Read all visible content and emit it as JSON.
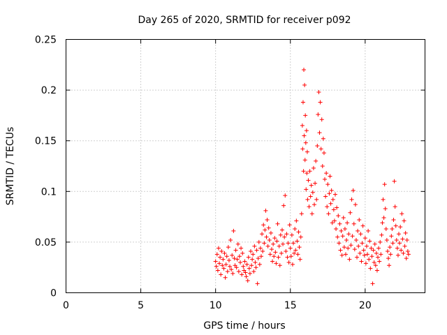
{
  "chart_data": {
    "type": "scatter",
    "title": "Day 265 of 2020, SRMTID for receiver p092",
    "xlabel": "GPS time / hours",
    "ylabel": "SRMTID / TECUs",
    "xlim": [
      0,
      24
    ],
    "ylim": [
      0,
      0.25
    ],
    "xticks": [
      0,
      5,
      10,
      15,
      20
    ],
    "yticks": [
      0,
      0.05,
      0.1,
      0.15,
      0.2,
      0.25
    ],
    "xtick_labels": [
      "0",
      "5",
      "10",
      "15",
      "20"
    ],
    "ytick_labels": [
      "0",
      "0.05",
      "0.1",
      "0.15",
      "0.2",
      "0.25"
    ],
    "grid": true,
    "marker": "+",
    "series": [
      {
        "name": "SRMTID",
        "color": "#ff0000",
        "points": [
          [
            10.0,
            0.031
          ],
          [
            10.05,
            0.026
          ],
          [
            10.1,
            0.038
          ],
          [
            10.15,
            0.022
          ],
          [
            10.2,
            0.044
          ],
          [
            10.25,
            0.029
          ],
          [
            10.3,
            0.035
          ],
          [
            10.35,
            0.018
          ],
          [
            10.4,
            0.041
          ],
          [
            10.45,
            0.027
          ],
          [
            10.5,
            0.033
          ],
          [
            10.55,
            0.024
          ],
          [
            10.6,
            0.039
          ],
          [
            10.65,
            0.015
          ],
          [
            10.7,
            0.028
          ],
          [
            10.75,
            0.036
          ],
          [
            10.8,
            0.021
          ],
          [
            10.85,
            0.045
          ],
          [
            10.9,
            0.032
          ],
          [
            10.95,
            0.026
          ],
          [
            11.0,
            0.052
          ],
          [
            11.05,
            0.023
          ],
          [
            11.1,
            0.037
          ],
          [
            11.15,
            0.019
          ],
          [
            11.2,
            0.061
          ],
          [
            11.25,
            0.034
          ],
          [
            11.3,
            0.027
          ],
          [
            11.35,
            0.042
          ],
          [
            11.4,
            0.025
          ],
          [
            11.45,
            0.033
          ],
          [
            11.5,
            0.048
          ],
          [
            11.55,
            0.021
          ],
          [
            11.6,
            0.036
          ],
          [
            11.65,
            0.03
          ],
          [
            11.7,
            0.044
          ],
          [
            11.75,
            0.018
          ],
          [
            11.8,
            0.039
          ],
          [
            11.85,
            0.026
          ],
          [
            11.9,
            0.022
          ],
          [
            11.95,
            0.031
          ],
          [
            12.0,
            0.02
          ],
          [
            12.05,
            0.016
          ],
          [
            12.1,
            0.028
          ],
          [
            12.15,
            0.012
          ],
          [
            12.2,
            0.035
          ],
          [
            12.25,
            0.024
          ],
          [
            12.3,
            0.019
          ],
          [
            12.35,
            0.041
          ],
          [
            12.4,
            0.027
          ],
          [
            12.45,
            0.033
          ],
          [
            12.5,
            0.038
          ],
          [
            12.55,
            0.021
          ],
          [
            12.6,
            0.046
          ],
          [
            12.65,
            0.03
          ],
          [
            12.7,
            0.025
          ],
          [
            12.75,
            0.042
          ],
          [
            12.8,
            0.009
          ],
          [
            12.85,
            0.034
          ],
          [
            12.9,
            0.05
          ],
          [
            12.95,
            0.028
          ],
          [
            13.0,
            0.044
          ],
          [
            13.05,
            0.036
          ],
          [
            13.1,
            0.058
          ],
          [
            13.15,
            0.041
          ],
          [
            13.2,
            0.067
          ],
          [
            13.25,
            0.049
          ],
          [
            13.3,
            0.062
          ],
          [
            13.35,
            0.081
          ],
          [
            13.4,
            0.055
          ],
          [
            13.45,
            0.072
          ],
          [
            13.5,
            0.046
          ],
          [
            13.55,
            0.064
          ],
          [
            13.6,
            0.052
          ],
          [
            13.65,
            0.038
          ],
          [
            13.7,
            0.059
          ],
          [
            13.75,
            0.043
          ],
          [
            13.8,
            0.031
          ],
          [
            13.85,
            0.048
          ],
          [
            13.9,
            0.036
          ],
          [
            13.95,
            0.054
          ],
          [
            14.0,
            0.04
          ],
          [
            14.05,
            0.029
          ],
          [
            14.1,
            0.051
          ],
          [
            14.15,
            0.068
          ],
          [
            14.2,
            0.035
          ],
          [
            14.25,
            0.046
          ],
          [
            14.3,
            0.027
          ],
          [
            14.35,
            0.057
          ],
          [
            14.4,
            0.039
          ],
          [
            14.45,
            0.062
          ],
          [
            14.5,
            0.048
          ],
          [
            14.55,
            0.086
          ],
          [
            14.6,
            0.055
          ],
          [
            14.65,
            0.096
          ],
          [
            14.7,
            0.041
          ],
          [
            14.75,
            0.058
          ],
          [
            14.8,
            0.035
          ],
          [
            14.85,
            0.049
          ],
          [
            14.9,
            0.03
          ],
          [
            14.95,
            0.067
          ],
          [
            15.0,
            0.044
          ],
          [
            15.05,
            0.036
          ],
          [
            15.1,
            0.057
          ],
          [
            15.15,
            0.028
          ],
          [
            15.2,
            0.049
          ],
          [
            15.25,
            0.039
          ],
          [
            15.3,
            0.063
          ],
          [
            15.35,
            0.042
          ],
          [
            15.4,
            0.071
          ],
          [
            15.45,
            0.051
          ],
          [
            15.5,
            0.038
          ],
          [
            15.55,
            0.06
          ],
          [
            15.6,
            0.045
          ],
          [
            15.65,
            0.033
          ],
          [
            15.7,
            0.055
          ],
          [
            15.75,
            0.078
          ],
          [
            15.8,
            0.165
          ],
          [
            15.82,
            0.142
          ],
          [
            15.85,
            0.188
          ],
          [
            15.88,
            0.12
          ],
          [
            15.9,
            0.22
          ],
          [
            15.92,
            0.155
          ],
          [
            15.95,
            0.205
          ],
          [
            15.98,
            0.131
          ],
          [
            16.0,
            0.175
          ],
          [
            16.03,
            0.148
          ],
          [
            16.05,
            0.102
          ],
          [
            16.08,
            0.16
          ],
          [
            16.1,
            0.118
          ],
          [
            16.13,
            0.139
          ],
          [
            16.15,
            0.092
          ],
          [
            16.2,
            0.111
          ],
          [
            16.25,
            0.085
          ],
          [
            16.3,
            0.12
          ],
          [
            16.35,
            0.095
          ],
          [
            16.4,
            0.106
          ],
          [
            16.45,
            0.078
          ],
          [
            16.5,
            0.099
          ],
          [
            16.55,
            0.123
          ],
          [
            16.6,
            0.087
          ],
          [
            16.65,
            0.108
          ],
          [
            16.7,
            0.13
          ],
          [
            16.75,
            0.092
          ],
          [
            16.8,
            0.145
          ],
          [
            16.85,
            0.176
          ],
          [
            16.9,
            0.198
          ],
          [
            16.95,
            0.158
          ],
          [
            17.0,
            0.188
          ],
          [
            17.05,
            0.142
          ],
          [
            17.1,
            0.171
          ],
          [
            17.15,
            0.125
          ],
          [
            17.2,
            0.152
          ],
          [
            17.25,
            0.138
          ],
          [
            17.3,
            0.112
          ],
          [
            17.35,
            0.095
          ],
          [
            17.4,
            0.118
          ],
          [
            17.45,
            0.085
          ],
          [
            17.5,
            0.107
          ],
          [
            17.55,
            0.078
          ],
          [
            17.6,
            0.098
          ],
          [
            17.65,
            0.115
          ],
          [
            17.7,
            0.088
          ],
          [
            17.75,
            0.101
          ],
          [
            17.8,
            0.069
          ],
          [
            17.85,
            0.092
          ],
          [
            17.9,
            0.082
          ],
          [
            17.95,
            0.071
          ],
          [
            18.0,
            0.097
          ],
          [
            18.05,
            0.063
          ],
          [
            18.1,
            0.084
          ],
          [
            18.15,
            0.055
          ],
          [
            18.2,
            0.076
          ],
          [
            18.25,
            0.049
          ],
          [
            18.3,
            0.068
          ],
          [
            18.35,
            0.042
          ],
          [
            18.4,
            0.061
          ],
          [
            18.45,
            0.037
          ],
          [
            18.5,
            0.056
          ],
          [
            18.55,
            0.074
          ],
          [
            18.6,
            0.045
          ],
          [
            18.65,
            0.063
          ],
          [
            18.7,
            0.038
          ],
          [
            18.75,
            0.052
          ],
          [
            18.8,
            0.069
          ],
          [
            18.85,
            0.044
          ],
          [
            18.9,
            0.058
          ],
          [
            18.95,
            0.033
          ],
          [
            19.0,
            0.079
          ],
          [
            19.05,
            0.047
          ],
          [
            19.1,
            0.092
          ],
          [
            19.15,
            0.056
          ],
          [
            19.2,
            0.101
          ],
          [
            19.25,
            0.068
          ],
          [
            19.3,
            0.043
          ],
          [
            19.35,
            0.087
          ],
          [
            19.4,
            0.052
          ],
          [
            19.45,
            0.035
          ],
          [
            19.5,
            0.061
          ],
          [
            19.55,
            0.046
          ],
          [
            19.6,
            0.072
          ],
          [
            19.65,
            0.039
          ],
          [
            19.7,
            0.058
          ],
          [
            19.75,
            0.031
          ],
          [
            19.8,
            0.049
          ],
          [
            19.85,
            0.066
          ],
          [
            19.9,
            0.042
          ],
          [
            19.95,
            0.037
          ],
          [
            20.0,
            0.054
          ],
          [
            20.05,
            0.029
          ],
          [
            20.1,
            0.046
          ],
          [
            20.15,
            0.038
          ],
          [
            20.2,
            0.061
          ],
          [
            20.25,
            0.033
          ],
          [
            20.3,
            0.051
          ],
          [
            20.35,
            0.024
          ],
          [
            20.4,
            0.044
          ],
          [
            20.45,
            0.036
          ],
          [
            20.5,
            0.009
          ],
          [
            20.55,
            0.042
          ],
          [
            20.6,
            0.03
          ],
          [
            20.65,
            0.048
          ],
          [
            20.7,
            0.027
          ],
          [
            20.75,
            0.039
          ],
          [
            20.8,
            0.022
          ],
          [
            20.85,
            0.035
          ],
          [
            20.9,
            0.044
          ],
          [
            20.95,
            0.031
          ],
          [
            21.0,
            0.05
          ],
          [
            21.05,
            0.038
          ],
          [
            21.1,
            0.057
          ],
          [
            21.15,
            0.069
          ],
          [
            21.2,
            0.092
          ],
          [
            21.25,
            0.074
          ],
          [
            21.3,
            0.107
          ],
          [
            21.35,
            0.083
          ],
          [
            21.4,
            0.063
          ],
          [
            21.45,
            0.052
          ],
          [
            21.5,
            0.041
          ],
          [
            21.55,
            0.034
          ],
          [
            21.6,
            0.027
          ],
          [
            21.65,
            0.045
          ],
          [
            21.7,
            0.038
          ],
          [
            21.75,
            0.056
          ],
          [
            21.8,
            0.063
          ],
          [
            21.85,
            0.049
          ],
          [
            21.9,
            0.072
          ],
          [
            21.95,
            0.11
          ],
          [
            22.0,
            0.085
          ],
          [
            22.05,
            0.066
          ],
          [
            22.1,
            0.052
          ],
          [
            22.15,
            0.044
          ],
          [
            22.2,
            0.037
          ],
          [
            22.25,
            0.058
          ],
          [
            22.3,
            0.049
          ],
          [
            22.35,
            0.065
          ],
          [
            22.4,
            0.042
          ],
          [
            22.45,
            0.078
          ],
          [
            22.5,
            0.053
          ],
          [
            22.55,
            0.039
          ],
          [
            22.6,
            0.071
          ],
          [
            22.65,
            0.046
          ],
          [
            22.7,
            0.059
          ],
          [
            22.75,
            0.034
          ],
          [
            22.8,
            0.052
          ],
          [
            22.85,
            0.041
          ],
          [
            22.9,
            0.038
          ]
        ]
      }
    ]
  }
}
